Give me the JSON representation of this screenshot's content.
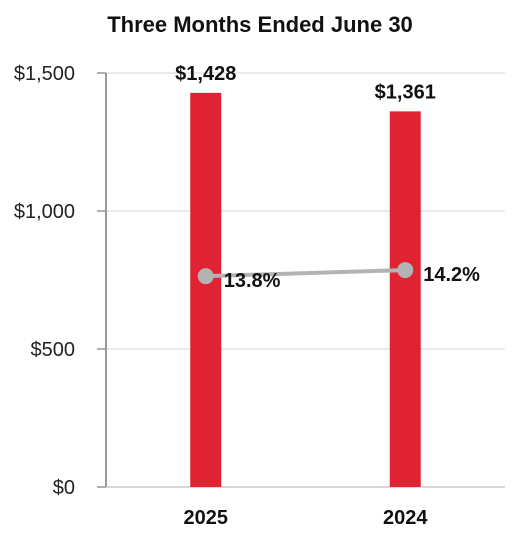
{
  "chart_data": {
    "type": "bar",
    "title": "Three Months Ended June 30",
    "categories": [
      "2025",
      "2024"
    ],
    "y_ticks": [
      "$0",
      "$500",
      "$1,000",
      "$1,500"
    ],
    "ylim": [
      0,
      1500
    ],
    "grid": true,
    "series": [
      {
        "type": "bar",
        "values": [
          1428,
          1361
        ],
        "labels": [
          "$1,428",
          "$1,361"
        ],
        "color": "#e02333"
      },
      {
        "type": "line",
        "values": [
          13.8,
          14.2
        ],
        "labels": [
          "13.8%",
          "14.2%"
        ],
        "ylim": [
          0,
          27.1
        ],
        "color": "#b3b3b3"
      }
    ]
  }
}
